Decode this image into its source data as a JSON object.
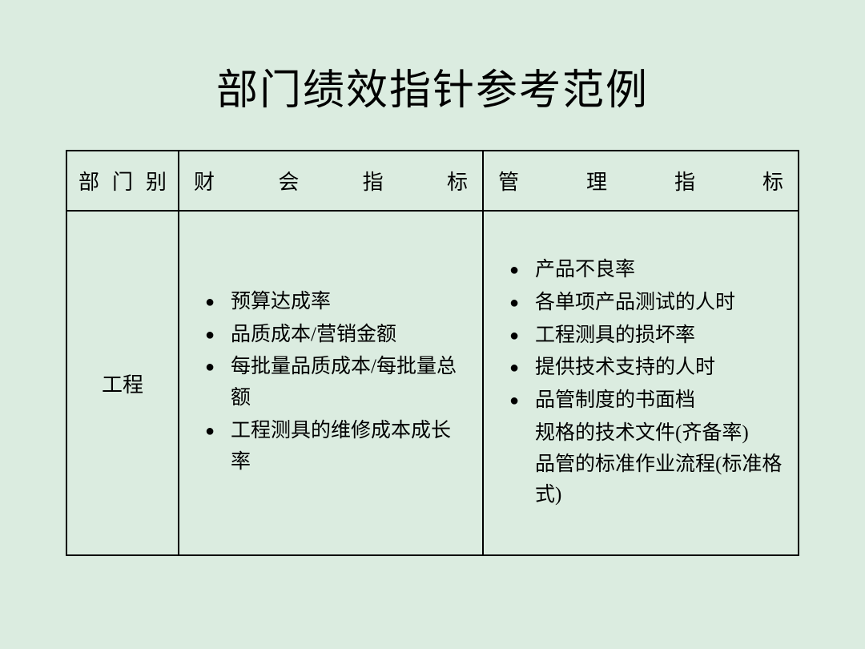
{
  "background_color": "#dbece0",
  "text_color": "#000000",
  "border_color": "#000000",
  "title": {
    "text": "部门绩效指针参考范例",
    "fontsize": 52
  },
  "table": {
    "columns": {
      "dept": "部门别",
      "finance": "财会指标",
      "management": "管理指标"
    },
    "header_fontsize": 26,
    "cell_fontsize": 25,
    "row": {
      "dept": "工程",
      "finance_bullets": [
        "预算达成率",
        "品质成本/营销金额",
        "每批量品质成本/每批量总额",
        "工程测具的维修成本成长率"
      ],
      "management_bullets": [
        "产品不良率",
        "各单项产品测试的人时",
        "工程测具的损坏率",
        "提供技术支持的人时",
        "品管制度的书面档"
      ],
      "management_sublines": [
        "规格的技术文件(齐备率)",
        "品管的标准作业流程(标准格式)"
      ]
    }
  }
}
